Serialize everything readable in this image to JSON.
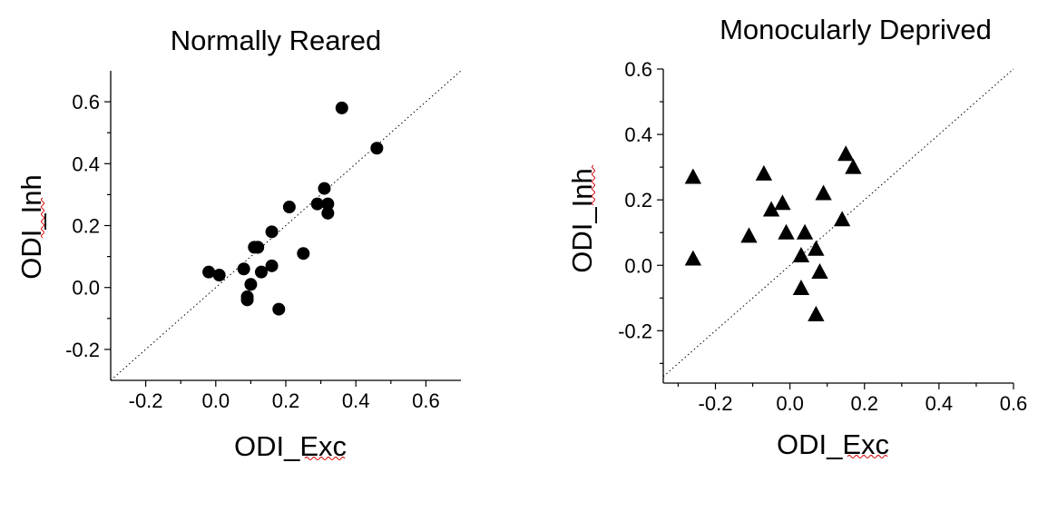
{
  "chart_data": [
    {
      "type": "scatter",
      "title": "Normally Reared",
      "xlabel": "ODI_Exc",
      "ylabel": "ODI_Inh",
      "marker": "circle",
      "xlim": [
        -0.3,
        0.7
      ],
      "ylim": [
        -0.3,
        0.7
      ],
      "xticks": [
        -0.2,
        0.0,
        0.2,
        0.4,
        0.6
      ],
      "xtick_labels": [
        "-0.2",
        "0.0",
        "0.2",
        "0.4",
        "0.6"
      ],
      "yticks": [
        -0.2,
        0.0,
        0.2,
        0.4,
        0.6
      ],
      "ytick_labels": [
        "-0.2",
        "0.0",
        "0.2",
        "0.4",
        "0.6"
      ],
      "identity_line": true,
      "x": [
        -0.02,
        0.01,
        0.08,
        0.09,
        0.09,
        0.1,
        0.11,
        0.12,
        0.13,
        0.12,
        0.16,
        0.16,
        0.18,
        0.21,
        0.25,
        0.29,
        0.31,
        0.32,
        0.32,
        0.36,
        0.46
      ],
      "y": [
        0.05,
        0.04,
        0.06,
        -0.03,
        -0.04,
        0.01,
        0.13,
        0.13,
        0.05,
        0.13,
        0.07,
        0.18,
        -0.07,
        0.26,
        0.11,
        0.27,
        0.32,
        0.27,
        0.24,
        0.58,
        0.45
      ]
    },
    {
      "type": "scatter",
      "title": "Monocularly Deprived",
      "xlabel": "ODI_Exc",
      "ylabel": "ODI_Inh",
      "marker": "triangle",
      "xlim": [
        -0.34,
        0.6
      ],
      "ylim": [
        -0.36,
        0.6
      ],
      "xticks": [
        -0.2,
        0.0,
        0.2,
        0.4,
        0.6
      ],
      "xtick_labels": [
        "-0.2",
        "0.0",
        "0.2",
        "0.4",
        "0.6"
      ],
      "yticks": [
        -0.2,
        0.0,
        0.2,
        0.4,
        0.6
      ],
      "ytick_labels": [
        "-0.2",
        "0.0",
        "0.2",
        "0.4",
        "0.6"
      ],
      "identity_line": true,
      "x": [
        -0.26,
        -0.26,
        -0.11,
        -0.07,
        -0.05,
        -0.02,
        -0.01,
        0.03,
        0.03,
        0.04,
        0.07,
        0.07,
        0.08,
        0.09,
        0.14,
        0.15,
        0.17
      ],
      "y": [
        0.27,
        0.02,
        0.09,
        0.28,
        0.17,
        0.19,
        0.1,
        0.03,
        -0.07,
        0.1,
        0.05,
        -0.15,
        -0.02,
        0.22,
        0.14,
        0.34,
        0.3
      ]
    }
  ]
}
